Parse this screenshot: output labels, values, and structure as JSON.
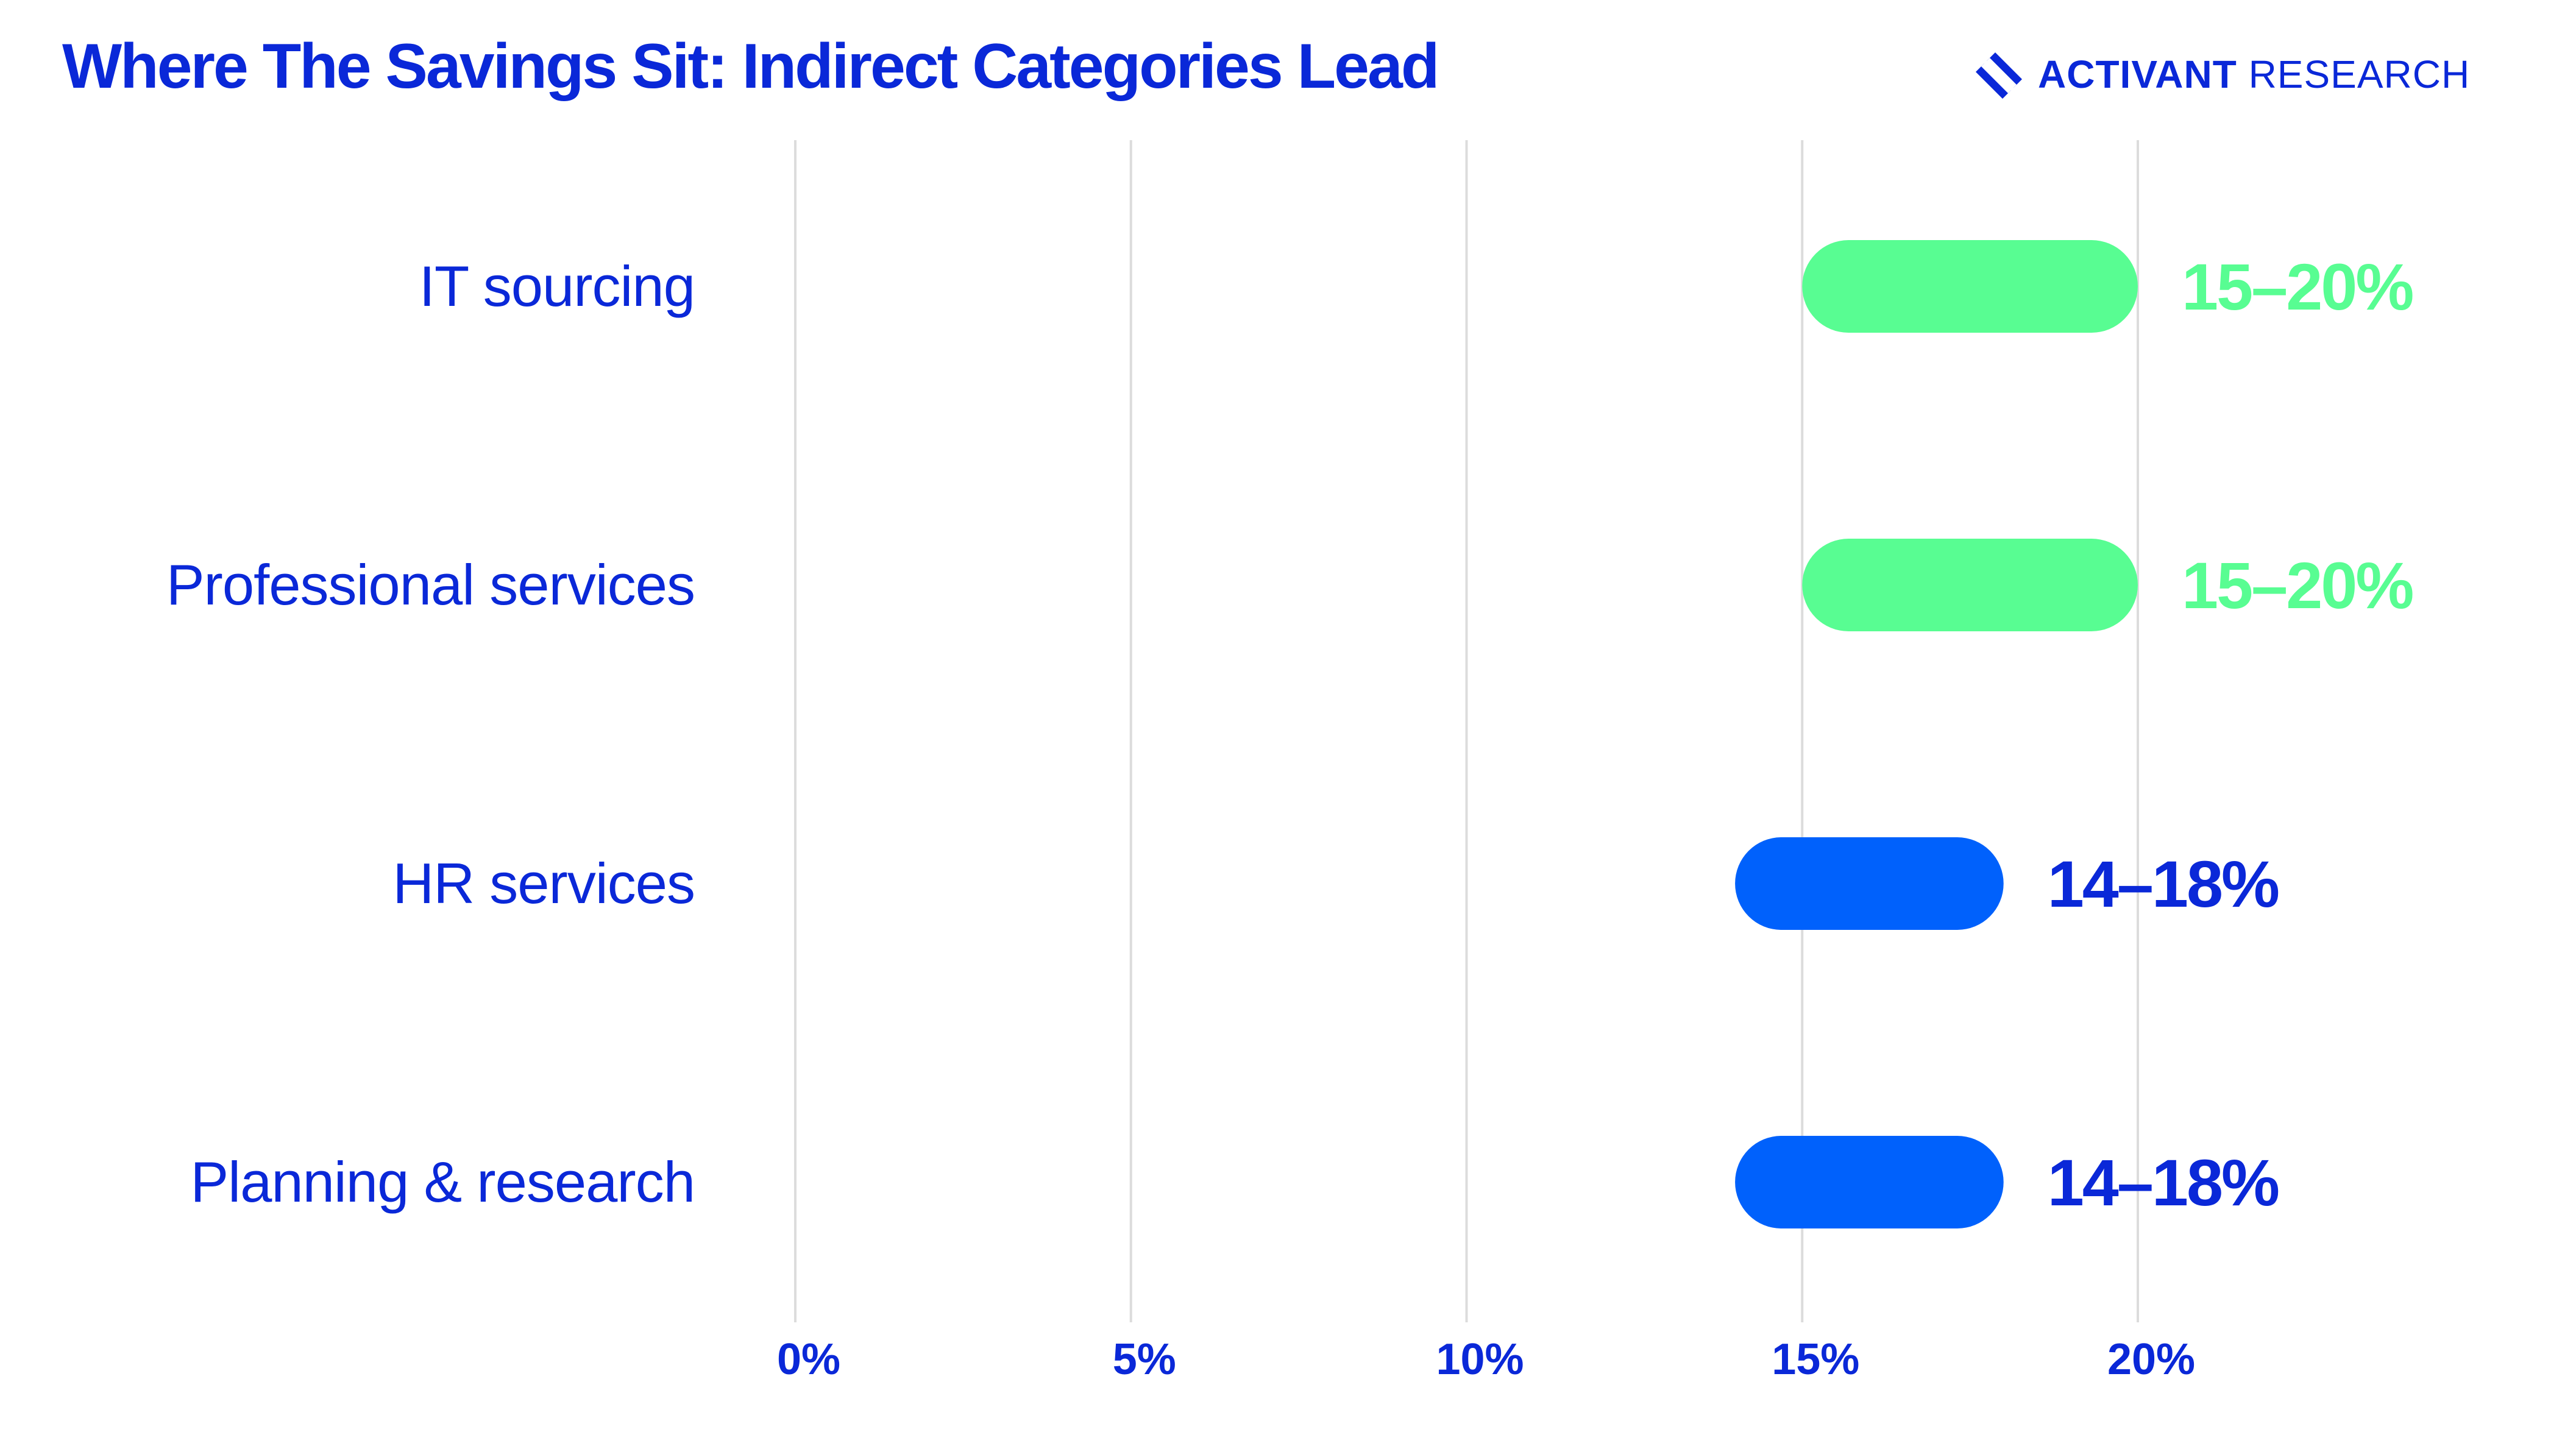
{
  "header": {
    "title": "Where The Savings Sit: Indirect Categories Lead",
    "brand_strong": "ACTIVANT",
    "brand_light": " RESEARCH",
    "brand_icon": "activant-logo-icon"
  },
  "colors": {
    "text": "#0a28d8",
    "green": "#58fd92",
    "blue": "#0061fc",
    "grid": "#dcdcdc"
  },
  "chart_data": {
    "type": "bar",
    "orientation": "horizontal",
    "title": "Where The Savings Sit: Indirect Categories Lead",
    "xlabel": "",
    "ylabel": "",
    "xlim": [
      0,
      20
    ],
    "x_ticks": [
      0,
      5,
      10,
      15,
      20
    ],
    "x_tick_labels": [
      "0%",
      "5%",
      "10%",
      "15%",
      "20%"
    ],
    "grid": "vertical",
    "categories": [
      "IT sourcing",
      "Professional services",
      "HR services",
      "Planning & research"
    ],
    "ranges": [
      [
        15,
        20
      ],
      [
        15,
        20
      ],
      [
        14,
        18
      ],
      [
        14,
        18
      ]
    ],
    "labels": [
      "15–20%",
      "15–20%",
      "14–18%",
      "14–18%"
    ],
    "bar_colors": [
      "#58fd92",
      "#58fd92",
      "#0061fc",
      "#0061fc"
    ],
    "label_colors": [
      "#58fd92",
      "#58fd92",
      "#0a28d8",
      "#0a28d8"
    ]
  }
}
